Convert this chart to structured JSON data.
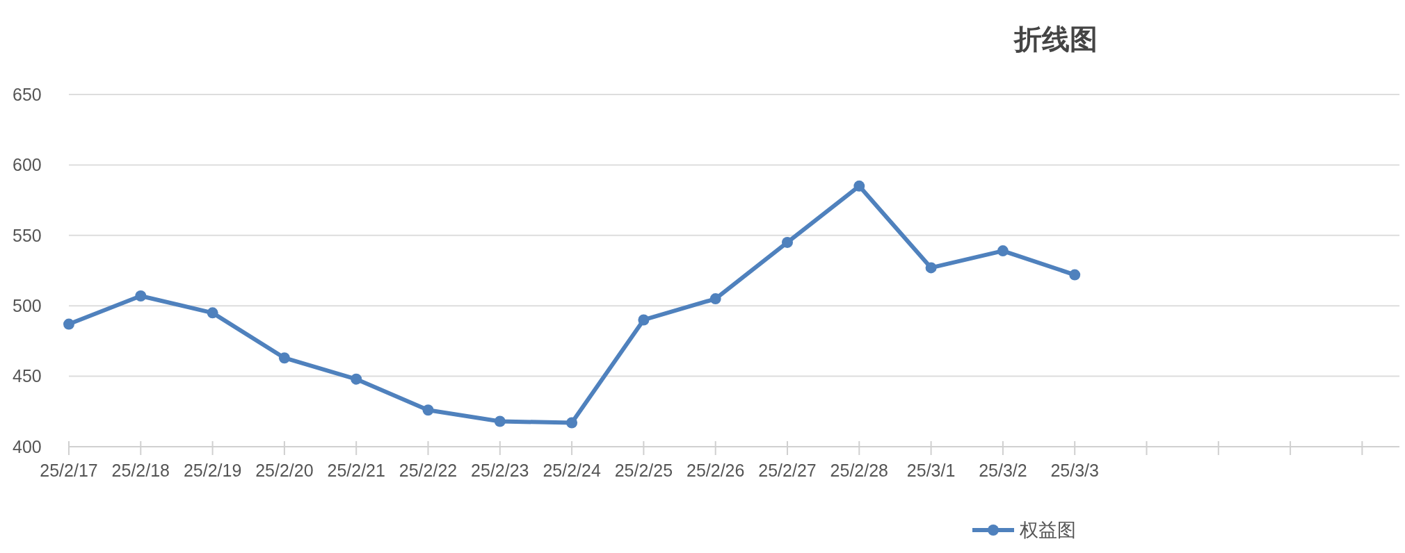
{
  "chart_data": {
    "type": "line",
    "title": "折线图",
    "categories": [
      "25/2/17",
      "25/2/18",
      "25/2/19",
      "25/2/20",
      "25/2/21",
      "25/2/22",
      "25/2/23",
      "25/2/24",
      "25/2/25",
      "25/2/26",
      "25/2/27",
      "25/2/28",
      "25/3/1",
      "25/3/2",
      "25/3/3",
      null,
      null,
      null,
      null
    ],
    "series": [
      {
        "name": "权益图",
        "color": "#4f81bd",
        "values": [
          487,
          507,
          495,
          463,
          448,
          426,
          418,
          417,
          490,
          505,
          545,
          585,
          527,
          539,
          522,
          null,
          null,
          null,
          null
        ]
      }
    ],
    "ylim": [
      400,
      650
    ],
    "yticks": [
      400,
      450,
      500,
      550,
      600,
      650
    ],
    "grid": "y",
    "legend": "bottom",
    "marker": "circle",
    "line_style": "solid"
  }
}
